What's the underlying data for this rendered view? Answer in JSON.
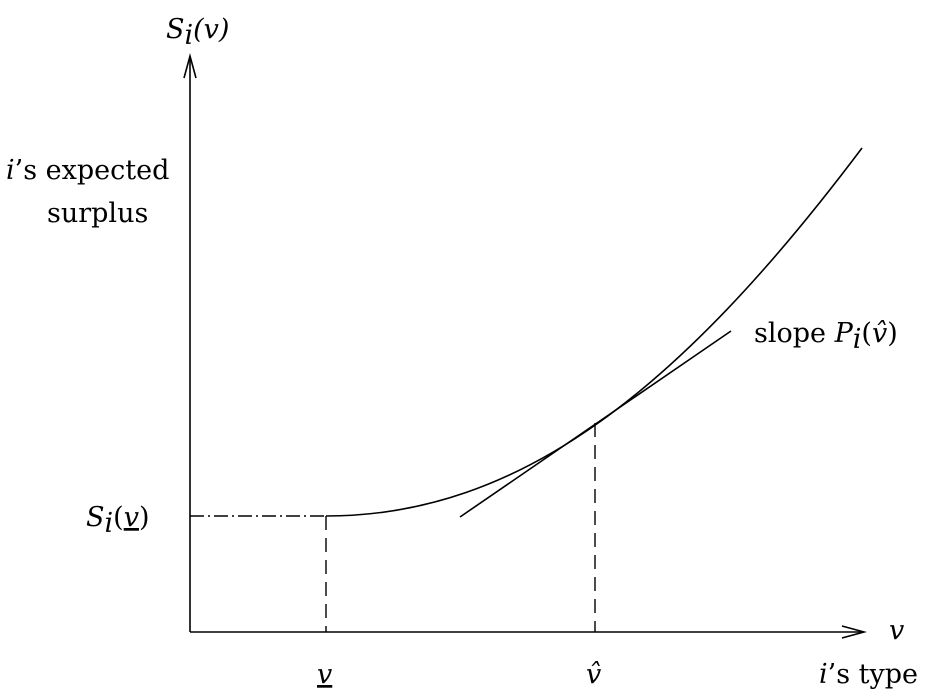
{
  "y_axis": {
    "label_main": "S",
    "label_sub": "i",
    "label_arg": "(v)",
    "caption_line1_italic": "i",
    "caption_line1_rest": "’s expected",
    "caption_line2": "surplus"
  },
  "x_axis": {
    "label": "v",
    "caption_italic": "i",
    "caption_rest": "’s type"
  },
  "points": {
    "v_lower": "v",
    "v_hat": "v̂",
    "s_lower_main": "S",
    "s_lower_sub": "i",
    "s_lower_open": "(",
    "s_lower_arg": "v",
    "s_lower_close": ")"
  },
  "tangent_label": {
    "prefix": "slope ",
    "main": "P",
    "sub": "i",
    "open": "(",
    "arg": "v̂",
    "close": ")"
  }
}
